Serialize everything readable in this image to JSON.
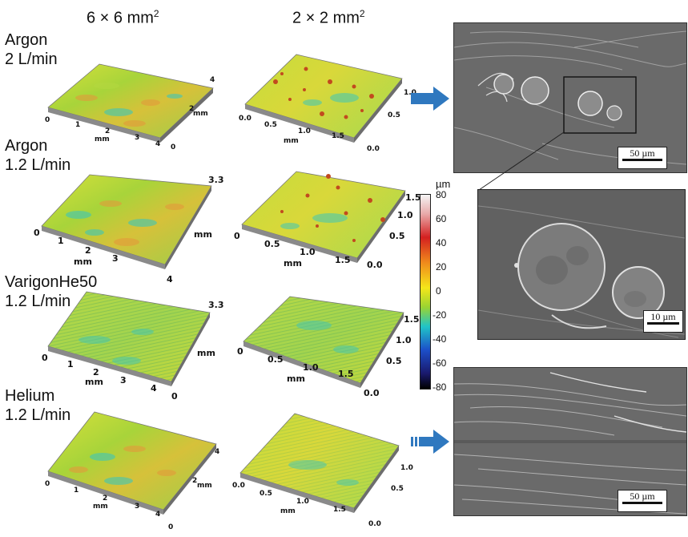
{
  "columns": {
    "col1": {
      "base": "6 × 6 mm",
      "sup": "2"
    },
    "col2": {
      "base": "2 × 2 mm",
      "sup": "2"
    }
  },
  "rows": [
    {
      "label": "Argon\n2 L/min"
    },
    {
      "label": "Argon\n1.2 L/min"
    },
    {
      "label": "VarigonHe50\n1.2 L/min"
    },
    {
      "label": "Helium\n1.2 L/min"
    }
  ],
  "axes6": {
    "x_ticks": [
      "0",
      "1",
      "2",
      "3",
      "4"
    ],
    "unit": "mm",
    "y_top_argon2": "4",
    "y_top_argon12": "3.3",
    "y_top_varigon": "3.3",
    "y_top_helium": "4",
    "y_mid": "2",
    "y_mid_end": "0"
  },
  "axes2": {
    "x_ticks_a": [
      "0.0",
      "0.5",
      "1.0",
      "1.5"
    ],
    "x_ticks_b": [
      "0",
      "0.5",
      "1.0",
      "1.5"
    ],
    "unit": "mm",
    "y_ticks": [
      "1.0",
      "0.5",
      "0.0"
    ],
    "y_ticks_b": [
      "1.5",
      "1.0",
      "0.5",
      "0.0"
    ]
  },
  "colorbar": {
    "unit": "µm",
    "ticks": [
      "80",
      "60",
      "40",
      "20",
      "0",
      "-20",
      "-40",
      "-60",
      "-80"
    ],
    "range": [
      -80,
      80
    ],
    "colors": [
      "#f5f5f5",
      "#e8a8a8",
      "#d42020",
      "#f08a1c",
      "#f5e61a",
      "#9ad432",
      "#20c4c8",
      "#1c4fc9",
      "#1a1a6e",
      "#000000"
    ]
  },
  "sem": {
    "top_scale": "50 µm",
    "zoom_scale": "10 µm",
    "bottom_scale": "50 µm"
  },
  "colors": {
    "arrow": "#2f78bf",
    "surface_base": "#c8dc3a",
    "sem_gray": "#6c6c6c"
  }
}
